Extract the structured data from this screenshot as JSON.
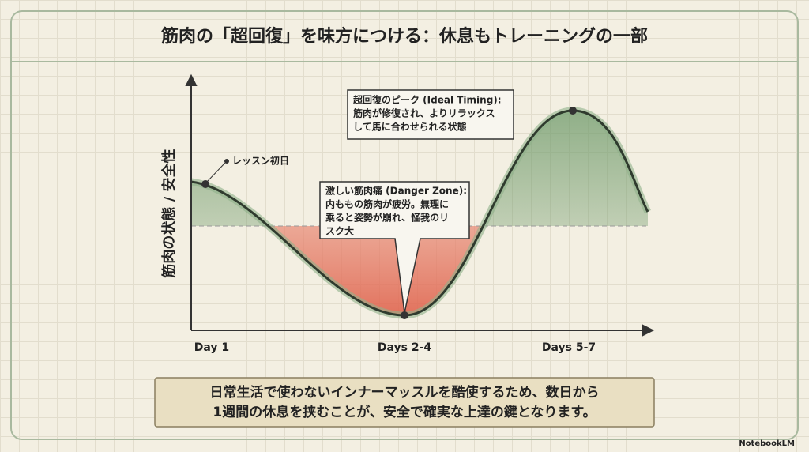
{
  "header": {
    "title": "筋肉の「超回復」を味方につける：休息もトレーニングの一部"
  },
  "diagram": {
    "y_axis_label": "筋肉の状態 / 安全性",
    "x_labels": [
      "Day 1",
      "Days 2-4",
      "Days 5-7"
    ],
    "start_label": "レッスン初日",
    "danger_note": [
      "激しい筋肉痛 (Danger Zone):",
      "内ももの筋肉が疲労。無理に",
      "乗ると姿勢が崩れ、怪我のリ",
      "スク大"
    ],
    "peak_note": [
      "超回復のピーク (Ideal Timing):",
      "筋肉が修復され、よりリラックス",
      "して馬に合わせられる状態"
    ]
  },
  "footer": {
    "lines": [
      "日常生活で使わないインナーマッスルを酷使するため、数日から",
      "1週間の休息を挟むことが、安全で確実な上達の鍵となります。"
    ]
  },
  "brand": "NotebookLM"
}
